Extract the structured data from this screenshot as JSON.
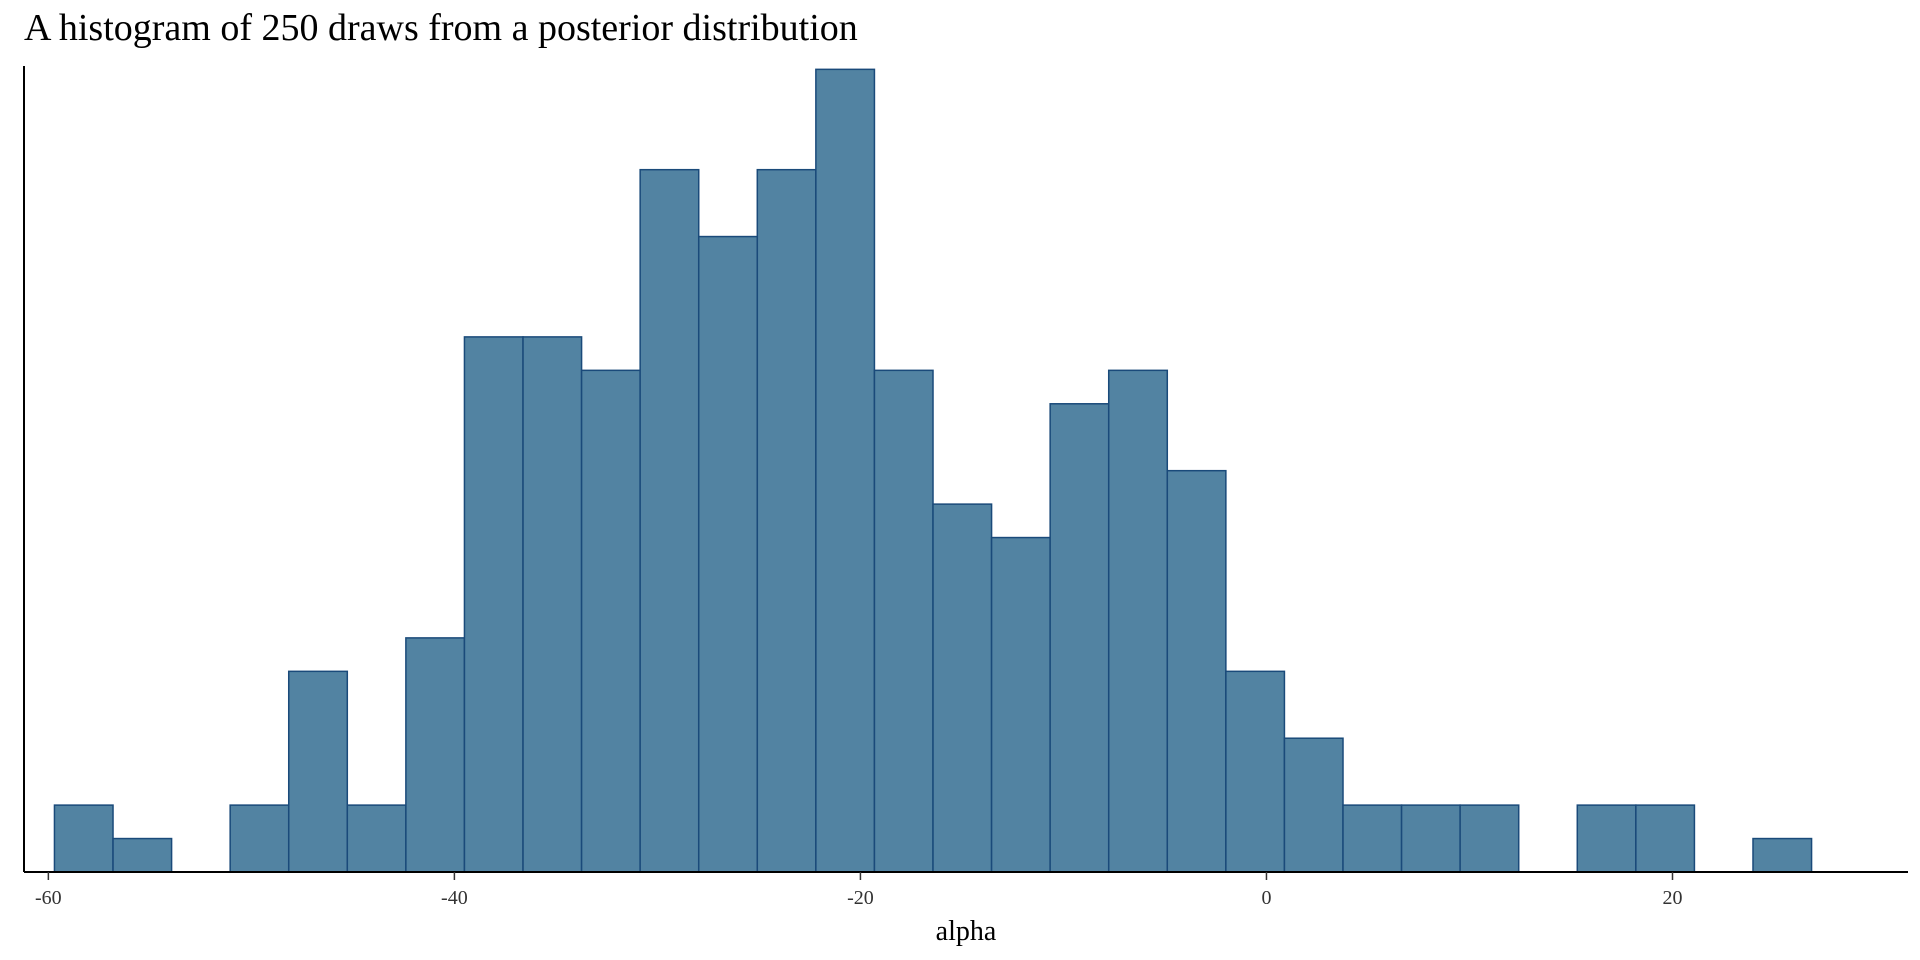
{
  "chart_data": {
    "type": "bar",
    "title": "A histogram of 250 draws from a posterior distribution",
    "xlabel": "alpha",
    "ylabel": "",
    "bin_start": -59.7,
    "bin_width": 2.885,
    "counts": [
      2,
      1,
      0,
      2,
      6,
      2,
      7,
      16,
      16,
      15,
      21,
      19,
      21,
      24,
      15,
      11,
      10,
      14,
      15,
      12,
      6,
      4,
      2,
      2,
      2,
      0,
      2,
      2,
      0,
      1
    ],
    "xlim": [
      -61.2,
      31.6
    ],
    "ylim": [
      0,
      24.1
    ],
    "x_ticks": [
      -60,
      -40,
      -20,
      0,
      20
    ],
    "x_tick_labels": [
      "-60",
      "-40",
      "-20",
      "0",
      "20"
    ],
    "y_axis_labels_shown": false,
    "grid": false,
    "colors": {
      "bar_fill": "#5283a2",
      "bar_outline": "#1a4a7a",
      "axis": "#000000"
    }
  }
}
